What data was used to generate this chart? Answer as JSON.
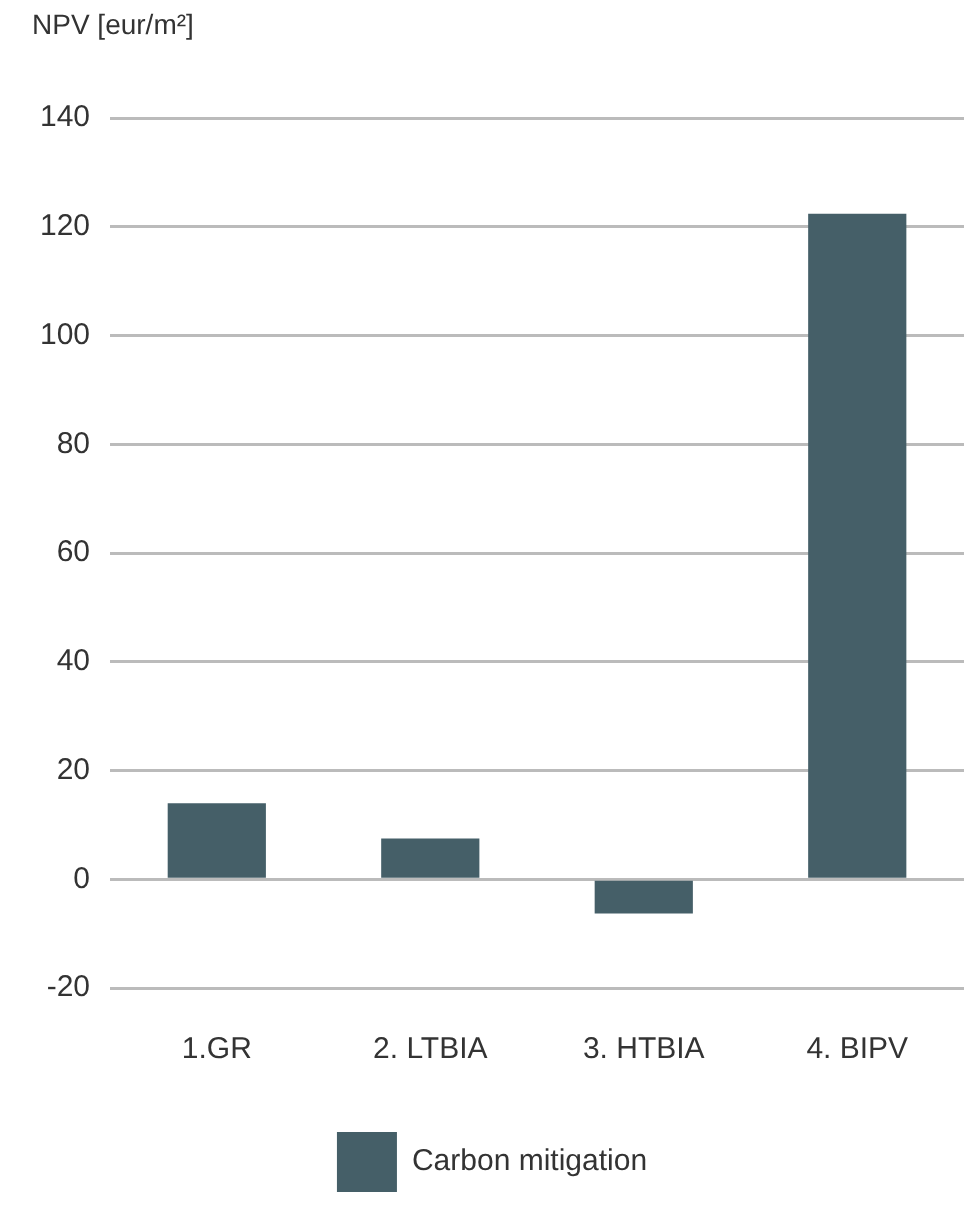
{
  "chart_data": {
    "type": "bar",
    "ylabel": "NPV [eur/m²]",
    "categories": [
      "1.GR",
      "2. LTBIA",
      "3. HTBIA",
      "4. BIPV"
    ],
    "series": [
      {
        "name": "Carbon mitigation",
        "color": "#455f68",
        "values": [
          14,
          7.5,
          -6.3,
          122.4
        ]
      }
    ],
    "ylim": [
      -20,
      140
    ],
    "yticks": [
      -20,
      0,
      20,
      40,
      60,
      80,
      100,
      120,
      140
    ],
    "grid": "y",
    "legend": "bottom"
  }
}
